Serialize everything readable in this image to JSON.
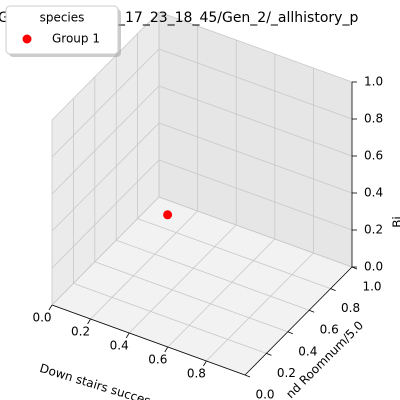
{
  "chart_data": {
    "type": "scatter3d",
    "title_fragments": [
      "G",
      "_17_23_18_45/Gen_2/_allhistory_p"
    ],
    "x_label": "Down stairs succes",
    "y_label": "nd Roomnum/5.0",
    "z_label": "Bi",
    "legend_title": "species",
    "legend": "upper left",
    "series": [
      {
        "name": "Group 1",
        "color": "#ff0000",
        "x": [
          0.1
        ],
        "y": [
          0.9
        ],
        "z": [
          0
        ]
      }
    ],
    "xlim": [
      0,
      1
    ],
    "ylim": [
      0,
      1
    ],
    "zlim": [
      0,
      1
    ],
    "xticks": [
      {
        "value": 0,
        "label": "0.0"
      },
      {
        "value": 0.2,
        "label": "0.2"
      },
      {
        "value": 0.4,
        "label": "0.4"
      },
      {
        "value": 0.6,
        "label": "0.6"
      },
      {
        "value": 0.8,
        "label": "0.8"
      }
    ],
    "yticks": [
      {
        "value": 0,
        "label": "0.0"
      },
      {
        "value": 0.2,
        "label": "0.2"
      },
      {
        "value": 0.4,
        "label": "0.4"
      },
      {
        "value": 0.6,
        "label": "0.6"
      },
      {
        "value": 0.8,
        "label": "0.8"
      },
      {
        "value": 1,
        "label": "1.0"
      }
    ],
    "zticks": [
      {
        "value": 0,
        "label": "0.0"
      },
      {
        "value": 0.2,
        "label": "0.2"
      },
      {
        "value": 0.4,
        "label": "0.4"
      },
      {
        "value": 0.6,
        "label": "0.6"
      },
      {
        "value": 0.8,
        "label": "0.8"
      },
      {
        "value": 1,
        "label": "1.0"
      }
    ],
    "grid": true
  }
}
